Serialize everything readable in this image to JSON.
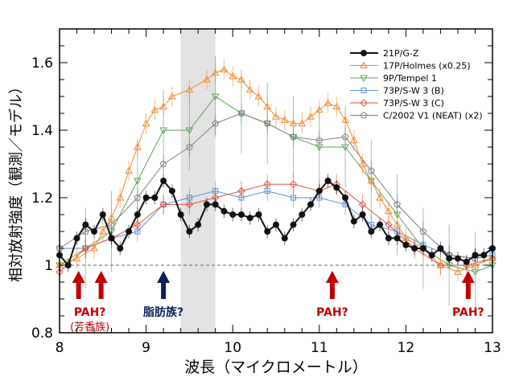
{
  "chart_data": {
    "type": "line",
    "xlabel": "波長（マイクロメートル）",
    "ylabel": "相対放射強度（観測／モデル）",
    "xlim": [
      8,
      13
    ],
    "ylim": [
      0.8,
      1.7
    ],
    "xticks": [
      "8",
      "9",
      "10",
      "11",
      "12",
      "13"
    ],
    "yticks": [
      "0.8",
      "1",
      "1.2",
      "1.4",
      "1.6"
    ],
    "reference_line": 1.0,
    "shaded_band": [
      9.4,
      9.8
    ],
    "legend_position": "top-right",
    "series": [
      {
        "name": "21P/G-Z",
        "color": "#111111",
        "marker": "filled-circle",
        "x": [
          8.0,
          8.1,
          8.2,
          8.3,
          8.4,
          8.5,
          8.6,
          8.7,
          8.8,
          8.9,
          9.0,
          9.1,
          9.2,
          9.3,
          9.4,
          9.5,
          9.6,
          9.7,
          9.8,
          9.9,
          10.0,
          10.1,
          10.2,
          10.3,
          10.4,
          10.5,
          10.6,
          10.7,
          10.8,
          10.9,
          11.0,
          11.1,
          11.2,
          11.3,
          11.4,
          11.5,
          11.6,
          11.7,
          11.8,
          11.9,
          12.0,
          12.1,
          12.2,
          12.3,
          12.4,
          12.5,
          12.6,
          12.7,
          12.8,
          12.9,
          13.0
        ],
        "y": [
          1.03,
          1.0,
          1.08,
          1.12,
          1.1,
          1.15,
          1.08,
          1.05,
          1.1,
          1.15,
          1.2,
          1.2,
          1.25,
          1.22,
          1.15,
          1.1,
          1.12,
          1.18,
          1.18,
          1.16,
          1.15,
          1.15,
          1.14,
          1.15,
          1.1,
          1.12,
          1.08,
          1.12,
          1.15,
          1.18,
          1.22,
          1.25,
          1.23,
          1.2,
          1.13,
          1.15,
          1.1,
          1.12,
          1.08,
          1.08,
          1.06,
          1.05,
          1.05,
          1.03,
          1.05,
          1.02,
          1.02,
          1.01,
          1.03,
          1.03,
          1.05
        ]
      },
      {
        "name": "17P/Holmes (x0.25)",
        "color": "#f28a2e",
        "marker": "triangle-up",
        "x": [
          8.0,
          8.2,
          8.4,
          8.5,
          8.6,
          8.7,
          8.8,
          8.9,
          9.0,
          9.1,
          9.2,
          9.3,
          9.5,
          9.7,
          9.8,
          9.9,
          10.0,
          10.1,
          10.2,
          10.3,
          10.4,
          10.5,
          10.6,
          10.7,
          10.8,
          10.9,
          11.0,
          11.1,
          11.2,
          11.3,
          11.4,
          11.5,
          11.6,
          11.7,
          11.8,
          11.9,
          12.0,
          12.2,
          12.4,
          12.6,
          12.8,
          13.0
        ],
        "y": [
          1.0,
          1.02,
          1.05,
          1.1,
          1.14,
          1.2,
          1.28,
          1.35,
          1.42,
          1.46,
          1.47,
          1.5,
          1.52,
          1.55,
          1.57,
          1.58,
          1.56,
          1.55,
          1.52,
          1.5,
          1.47,
          1.44,
          1.43,
          1.42,
          1.42,
          1.44,
          1.46,
          1.48,
          1.47,
          1.43,
          1.37,
          1.3,
          1.25,
          1.2,
          1.16,
          1.12,
          1.08,
          1.05,
          1.0,
          0.98,
          1.0,
          1.02
        ]
      },
      {
        "name": "9P/Tempel 1",
        "color": "#5fa35a",
        "marker": "triangle-down",
        "x": [
          8.0,
          8.3,
          8.6,
          8.9,
          9.2,
          9.5,
          9.8,
          10.1,
          10.4,
          10.7,
          11.0,
          11.3,
          11.6,
          11.9,
          12.2,
          12.5,
          12.8,
          13.0
        ],
        "y": [
          1.0,
          1.05,
          1.1,
          1.25,
          1.4,
          1.4,
          1.5,
          1.45,
          1.42,
          1.38,
          1.35,
          1.35,
          1.25,
          1.15,
          1.05,
          1.0,
          0.98,
          1.0
        ]
      },
      {
        "name": "73P/S-W 3 (B)",
        "color": "#5b8fd9",
        "marker": "square",
        "x": [
          8.0,
          8.3,
          8.6,
          8.9,
          9.2,
          9.5,
          9.8,
          10.1,
          10.4,
          10.7,
          11.0,
          11.3,
          11.6,
          11.9,
          12.2,
          12.5,
          12.8,
          13.0
        ],
        "y": [
          1.05,
          1.05,
          1.08,
          1.1,
          1.18,
          1.2,
          1.22,
          1.2,
          1.22,
          1.2,
          1.2,
          1.18,
          1.12,
          1.1,
          1.06,
          1.03,
          1.02,
          1.03
        ]
      },
      {
        "name": "73P/S-W 3 (C)",
        "color": "#e0503c",
        "marker": "diamond",
        "x": [
          8.0,
          8.3,
          8.6,
          8.9,
          9.2,
          9.5,
          9.8,
          10.1,
          10.4,
          10.7,
          11.0,
          11.2,
          11.5,
          11.8,
          12.1,
          12.4,
          12.7,
          13.0
        ],
        "y": [
          0.98,
          1.05,
          1.08,
          1.12,
          1.18,
          1.18,
          1.2,
          1.22,
          1.24,
          1.24,
          1.22,
          1.24,
          1.18,
          1.12,
          1.05,
          1.0,
          1.0,
          1.02
        ]
      },
      {
        "name": "C/2002 V1 (NEAT) (x2)",
        "color": "#808080",
        "marker": "pentagon",
        "x": [
          8.0,
          8.3,
          8.6,
          8.9,
          9.2,
          9.5,
          9.8,
          10.1,
          10.4,
          10.7,
          11.0,
          11.3,
          11.6,
          11.9,
          12.2,
          12.5,
          12.8,
          13.0
        ],
        "y": [
          1.05,
          1.1,
          1.12,
          1.2,
          1.3,
          1.35,
          1.42,
          1.45,
          1.42,
          1.38,
          1.37,
          1.38,
          1.28,
          1.18,
          1.1,
          1.03,
          1.02,
          1.05
        ]
      }
    ],
    "annotations": [
      {
        "x": 8.22,
        "label": "PAH?",
        "sublabel": "(芳香族)",
        "color": "#c00000"
      },
      {
        "x": 8.48,
        "label": "",
        "color": "#c00000"
      },
      {
        "x": 9.2,
        "label": "脂肪族?",
        "color": "#0a1f5c"
      },
      {
        "x": 11.15,
        "label": "PAH?",
        "color": "#c00000"
      },
      {
        "x": 12.72,
        "label": "PAH?",
        "color": "#c00000"
      }
    ]
  }
}
